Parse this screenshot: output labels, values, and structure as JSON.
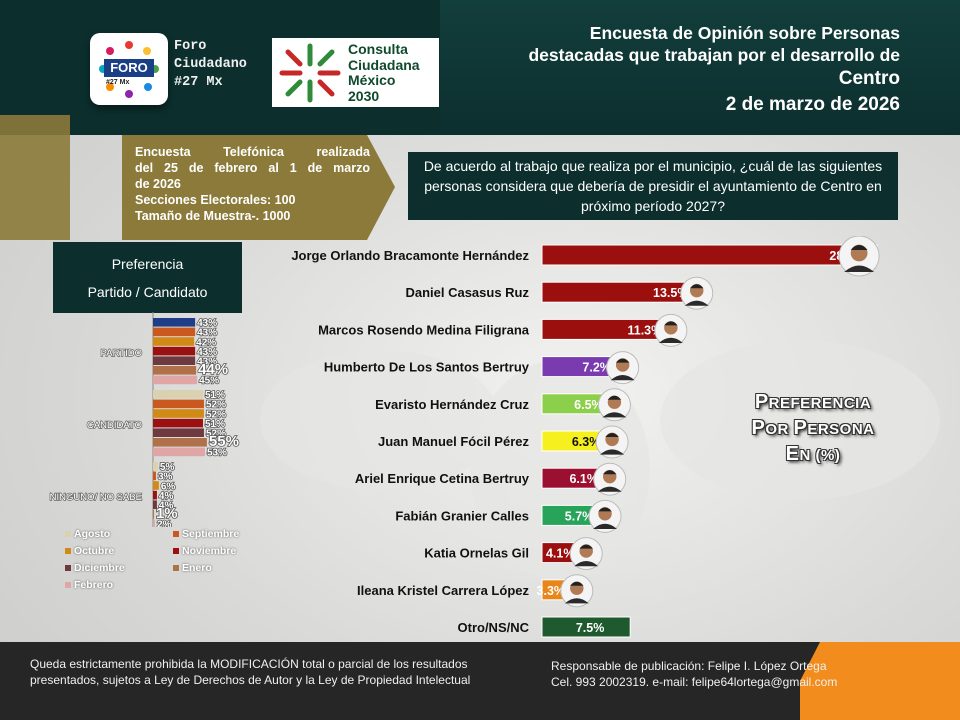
{
  "header": {
    "org_name": [
      "Foro",
      "Ciudadano",
      "#27 Mx"
    ],
    "foro_logo_word": "FORO",
    "foro_logo_tag": "#27 Mx",
    "consulta_logo_text": [
      "Consulta",
      "Ciudadana",
      "México",
      "2030"
    ],
    "title_lines": [
      "Encuesta de Opinión sobre Personas",
      "destacadas que trabajan por el desarrollo de"
    ],
    "place": "Centro",
    "date": "2 de marzo de 2026"
  },
  "survey_info": {
    "lines": [
      "Encuesta Telefónica realizada",
      "del 25 de febrero al 1 de marzo",
      "de 2026",
      "Secciones Electorales: 100",
      "Tamaño de Muestra-. 1000"
    ]
  },
  "question": "De acuerdo al trabajo que realiza por el municipio, ¿cuál de las siguientes personas considera que debería de presidir el ayuntamiento de Centro en próximo período 2027?",
  "left_panel": {
    "title_line1": "Preferencia",
    "title_line2": "Partido / Candidato"
  },
  "big_label": {
    "line1_big": "P",
    "line1_small": "REFERENCIA",
    "line2_big1": "P",
    "line2_small1": "OR ",
    "line2_big2": "P",
    "line2_small2": "ERSONA",
    "line3_big": "E",
    "line3_small": "N (%)"
  },
  "footer": {
    "left": "Queda estrictamente prohibida la MODIFICACIÓN  total o parcial de los resultados presentados, sujetos a Ley de Derechos de Autor y la Ley de Propiedad Intelectual",
    "right_line1": "Responsable de publicación: Felipe I. López Ortega",
    "right_line2": "Cel. 993 2002319. e-mail: felipe64lortega@gmail.com"
  },
  "colors": {
    "dark_teal": "#0c2f2e",
    "olive": "#8b7a3a",
    "orange": "#f28c1c"
  },
  "chart_data": [
    {
      "type": "bar",
      "orientation": "horizontal",
      "categories": [
        "Jorge Orlando Bracamonte Hernández",
        "Daniel Casasus Ruz",
        "Marcos Rosendo Medina Filigrana",
        "Humberto De Los Santos Bertruy",
        "Evaristo Hernández Cruz",
        "Juan Manuel Fócil Pérez",
        "Ariel Enrique Cetina Bertruy",
        "Fabián Granier Calles",
        "Katia Ornelas Gil",
        "Ileana Kristel Carrera López",
        "Otro/NS/NC"
      ],
      "values": [
        28.5,
        13.5,
        11.3,
        7.2,
        6.5,
        6.3,
        6.1,
        5.7,
        4.1,
        3.3,
        7.5
      ],
      "value_labels": [
        "28.5%",
        "13.5%",
        "11.3%",
        "7.2%",
        "6.5%",
        "6.3%",
        "6.1%",
        "5.7%",
        "4.1%",
        "3.3%",
        "7.5%"
      ],
      "bar_colors": [
        "#9b0f0f",
        "#9b0f0f",
        "#9b0f0f",
        "#7a3ab0",
        "#8ccf4a",
        "#f5f01e",
        "#9b1030",
        "#27a35a",
        "#9b0f0f",
        "#e8861a",
        "#1f5a2e"
      ],
      "photo_icons": [
        "face-icon",
        "face-icon",
        "face-icon",
        "face-icon",
        "face-icon",
        "face-icon",
        "face-icon",
        "face-icon",
        "face-icon",
        "face-icon",
        ""
      ],
      "xlim": [
        0,
        29
      ]
    },
    {
      "type": "bar",
      "orientation": "horizontal",
      "groups": [
        "PARTIDO",
        "CANDIDATO",
        "NINGUNO/ NO SABE"
      ],
      "series": [
        {
          "name": "Agosto",
          "color": "#d9d2b0",
          "values": [
            43,
            51,
            5
          ]
        },
        {
          "name": "Septiembre",
          "color": "#c9591e",
          "values": [
            43,
            52,
            3
          ]
        },
        {
          "name": "Octubre",
          "color": "#d18a16",
          "values": [
            42,
            52,
            6
          ]
        },
        {
          "name": "Noviembre",
          "color": "#9b1010",
          "values": [
            43,
            51,
            4
          ]
        },
        {
          "name": "Diciembre",
          "color": "#6e3a40",
          "values": [
            43,
            52,
            4
          ]
        },
        {
          "name": "Enero",
          "color": "#b0714a",
          "values": [
            44,
            55,
            1
          ]
        },
        {
          "name": "Febrero",
          "color": "#e0a6a6",
          "values": [
            45,
            53,
            2
          ]
        }
      ],
      "first_bar_color": "#1f3e8a",
      "label_suffix": "%"
    }
  ]
}
